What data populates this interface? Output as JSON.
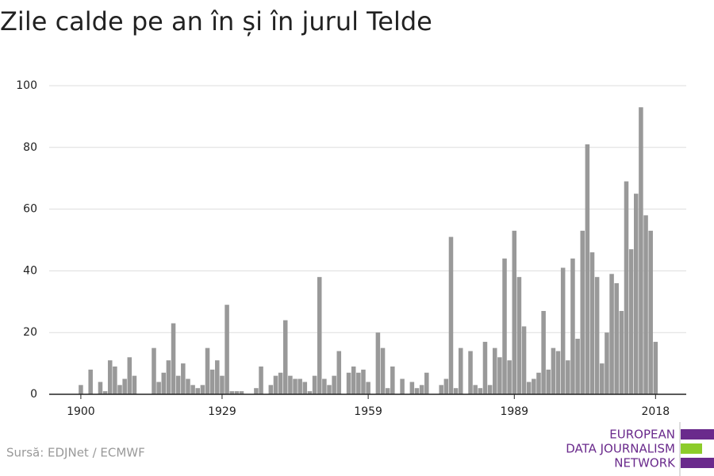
{
  "chart_data": {
    "type": "bar",
    "title": "Zile calde pe an în și în jurul Telde",
    "source": "Sursă: EDJNet / ECMWF",
    "logo": [
      "EUROPEAN",
      "DATA JOURNALISM",
      "NETWORK"
    ],
    "color": "#999999",
    "x": [
      1900,
      1901,
      1902,
      1903,
      1904,
      1905,
      1906,
      1907,
      1908,
      1909,
      1910,
      1911,
      1912,
      1913,
      1914,
      1915,
      1916,
      1917,
      1918,
      1919,
      1920,
      1921,
      1922,
      1923,
      1924,
      1925,
      1926,
      1927,
      1928,
      1929,
      1930,
      1931,
      1932,
      1933,
      1934,
      1935,
      1936,
      1937,
      1938,
      1939,
      1940,
      1941,
      1942,
      1943,
      1944,
      1945,
      1946,
      1947,
      1948,
      1949,
      1950,
      1951,
      1952,
      1953,
      1954,
      1955,
      1956,
      1957,
      1958,
      1959,
      1960,
      1961,
      1962,
      1963,
      1964,
      1965,
      1966,
      1967,
      1968,
      1969,
      1970,
      1971,
      1972,
      1973,
      1974,
      1975,
      1976,
      1977,
      1978,
      1979,
      1980,
      1981,
      1982,
      1983,
      1984,
      1985,
      1986,
      1987,
      1988,
      1989,
      1990,
      1991,
      1992,
      1993,
      1994,
      1995,
      1996,
      1997,
      1998,
      1999,
      2000,
      2001,
      2002,
      2003,
      2004,
      2005,
      2006,
      2007,
      2008,
      2009,
      2010,
      2011,
      2012,
      2013,
      2014,
      2015,
      2016,
      2017,
      2018
    ],
    "values": [
      3,
      0,
      8,
      0,
      4,
      1,
      11,
      9,
      3,
      5,
      12,
      6,
      0,
      0,
      0,
      15,
      4,
      7,
      11,
      23,
      6,
      10,
      5,
      3,
      2,
      3,
      15,
      8,
      11,
      6,
      29,
      1,
      1,
      1,
      0,
      0,
      2,
      9,
      0,
      3,
      6,
      7,
      24,
      6,
      5,
      5,
      4,
      1,
      6,
      38,
      5,
      3,
      6,
      14,
      0,
      7,
      9,
      7,
      8,
      4,
      0,
      20,
      15,
      2,
      9,
      0,
      5,
      0,
      4,
      2,
      3,
      7,
      0,
      0,
      3,
      5,
      51,
      2,
      15,
      0,
      14,
      3,
      2,
      17,
      3,
      15,
      12,
      44,
      11,
      53,
      38,
      22,
      4,
      5,
      7,
      27,
      8,
      15,
      14,
      41,
      11,
      44,
      18,
      53,
      81,
      46,
      38,
      10,
      20,
      39,
      36,
      27,
      69,
      47,
      65,
      93,
      58,
      53,
      17
    ],
    "xlim": [
      1893.5,
      2024.3
    ],
    "xticks": [
      1900,
      1929,
      1959,
      1989,
      2018
    ],
    "ylim": [
      0,
      100
    ],
    "yticks": [
      0,
      20,
      40,
      60,
      80,
      100
    ],
    "grid": true
  }
}
